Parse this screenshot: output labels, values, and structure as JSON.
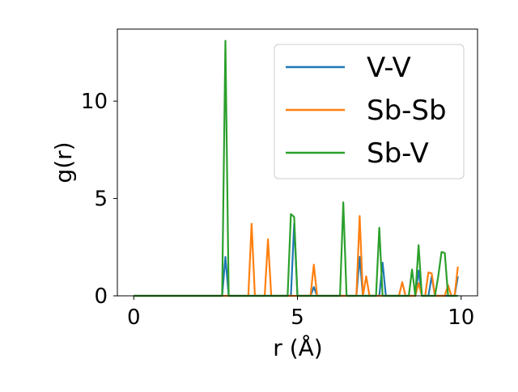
{
  "chart_data": {
    "type": "line",
    "title": "",
    "xlabel": "r (Å)",
    "ylabel": "g(r)",
    "xlim": [
      -0.5,
      10.5
    ],
    "ylim": [
      0,
      13.7
    ],
    "xticks": [
      0,
      5,
      10
    ],
    "xtick_labels": [
      "0",
      "5",
      "10"
    ],
    "yticks": [
      0,
      5,
      10
    ],
    "ytick_labels": [
      "0",
      "5",
      "10"
    ],
    "grid": false,
    "legend_position": "top-right",
    "colors": {
      "V-V": "#1f77b4",
      "Sb-Sb": "#ff7f0e",
      "Sb-V": "#2ca02c"
    },
    "x": [
      0,
      0.1,
      0.2,
      0.3,
      0.4,
      0.5,
      0.6,
      0.7,
      0.8,
      0.9,
      1.0,
      1.1,
      1.2,
      1.3,
      1.4,
      1.5,
      1.6,
      1.7,
      1.8,
      1.9,
      2.0,
      2.1,
      2.2,
      2.3,
      2.4,
      2.5,
      2.6,
      2.7,
      2.8,
      2.9,
      3.0,
      3.1,
      3.2,
      3.3,
      3.4,
      3.5,
      3.6,
      3.7,
      3.8,
      3.9,
      4.0,
      4.1,
      4.2,
      4.3,
      4.4,
      4.5,
      4.6,
      4.7,
      4.8,
      4.9,
      5.0,
      5.1,
      5.2,
      5.3,
      5.4,
      5.5,
      5.6,
      5.7,
      5.8,
      5.9,
      6.0,
      6.1,
      6.2,
      6.3,
      6.4,
      6.5,
      6.6,
      6.7,
      6.8,
      6.9,
      7.0,
      7.1,
      7.2,
      7.3,
      7.4,
      7.5,
      7.6,
      7.7,
      7.8,
      7.9,
      8.0,
      8.1,
      8.2,
      8.3,
      8.4,
      8.5,
      8.6,
      8.7,
      8.8,
      8.9,
      9.0,
      9.1,
      9.2,
      9.3,
      9.4,
      9.5,
      9.6,
      9.7,
      9.8,
      9.9
    ],
    "series": [
      {
        "name": "V-V",
        "values": [
          0,
          0,
          0,
          0,
          0,
          0,
          0,
          0,
          0,
          0,
          0,
          0,
          0,
          0,
          0,
          0,
          0,
          0,
          0,
          0,
          0,
          0,
          0,
          0,
          0,
          0,
          0,
          0,
          2.0,
          0,
          0,
          0,
          0,
          0,
          0,
          0,
          0,
          0,
          0,
          0,
          0,
          0,
          0,
          0,
          0,
          0,
          0,
          0,
          0,
          3.7,
          0,
          0,
          0,
          0,
          0,
          0.45,
          0,
          0,
          0,
          0,
          0,
          0,
          0,
          0,
          0,
          0,
          0,
          0,
          0,
          2.0,
          0,
          0,
          0,
          0,
          0,
          0,
          1.7,
          0,
          0,
          0,
          0,
          0,
          0,
          0,
          0,
          0,
          0,
          1.3,
          0,
          0,
          0,
          1.0,
          0,
          0,
          0,
          0,
          0,
          0,
          0,
          1.0
        ]
      },
      {
        "name": "Sb-Sb",
        "values": [
          0,
          0,
          0,
          0,
          0,
          0,
          0,
          0,
          0,
          0,
          0,
          0,
          0,
          0,
          0,
          0,
          0,
          0,
          0,
          0,
          0,
          0,
          0,
          0,
          0,
          0,
          0,
          0,
          0,
          0,
          0,
          0,
          0,
          0,
          0,
          0,
          3.7,
          0,
          0,
          0,
          0,
          2.9,
          0,
          0,
          0,
          0,
          0,
          0,
          0,
          0,
          0,
          0,
          0,
          0,
          0,
          1.6,
          0,
          0,
          0,
          0,
          0,
          0,
          0,
          0,
          0,
          0,
          0,
          0,
          0,
          4.1,
          0,
          1.0,
          0,
          0,
          0,
          0,
          0,
          0,
          0,
          0,
          0,
          0,
          0.7,
          0,
          0,
          0,
          0,
          0.65,
          0,
          0,
          1.2,
          1.15,
          0,
          0,
          0,
          0,
          0.55,
          0,
          0,
          1.5
        ]
      },
      {
        "name": "Sb-V",
        "values": [
          0,
          0,
          0,
          0,
          0,
          0,
          0,
          0,
          0,
          0,
          0,
          0,
          0,
          0,
          0,
          0,
          0,
          0,
          0,
          0,
          0,
          0,
          0,
          0,
          0,
          0,
          0,
          0,
          13.1,
          0,
          0,
          0,
          0,
          0,
          0,
          0,
          0,
          0,
          0,
          0,
          0,
          0,
          0,
          0,
          0,
          0,
          0,
          0,
          4.2,
          4.05,
          0,
          0,
          0,
          0,
          0,
          0,
          0,
          0,
          0,
          0,
          0,
          0,
          0,
          0,
          4.8,
          0,
          0,
          0,
          0,
          0,
          0,
          0,
          0,
          0,
          0,
          3.5,
          0,
          0,
          0,
          0,
          0,
          0,
          0,
          0,
          0,
          1.35,
          0,
          2.6,
          0,
          0,
          0,
          0,
          0,
          1.0,
          2.25,
          2.2,
          0,
          0,
          0,
          0
        ]
      }
    ]
  }
}
